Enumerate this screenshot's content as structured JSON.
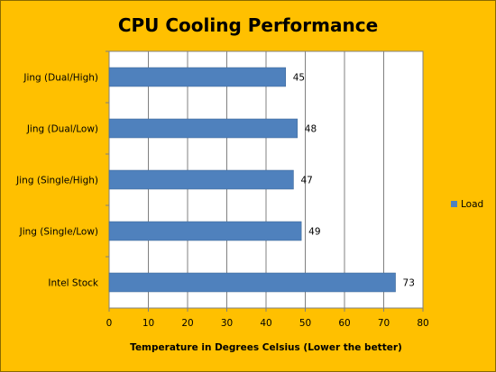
{
  "chart_data": {
    "type": "bar",
    "orientation": "horizontal",
    "title": "CPU Cooling Performance",
    "xlabel": "Temperature in Degrees Celsius (Lower the  better)",
    "ylabel": "",
    "categories": [
      "Jing (Dual/High)",
      "Jing (Dual/Low)",
      "Jing (Single/High)",
      "Jing (Single/Low)",
      "Intel Stock"
    ],
    "series": [
      {
        "name": "Load",
        "values": [
          45,
          48,
          47,
          49,
          73
        ],
        "color": "#4F81BD"
      }
    ],
    "xlim": [
      0,
      80
    ],
    "ticks": [
      0,
      10,
      20,
      30,
      40,
      50,
      60,
      70,
      80
    ],
    "grid": "vertical",
    "legend_position": "right",
    "background_color": "#FFC000",
    "plot_background_color": "#FFFFFF"
  }
}
